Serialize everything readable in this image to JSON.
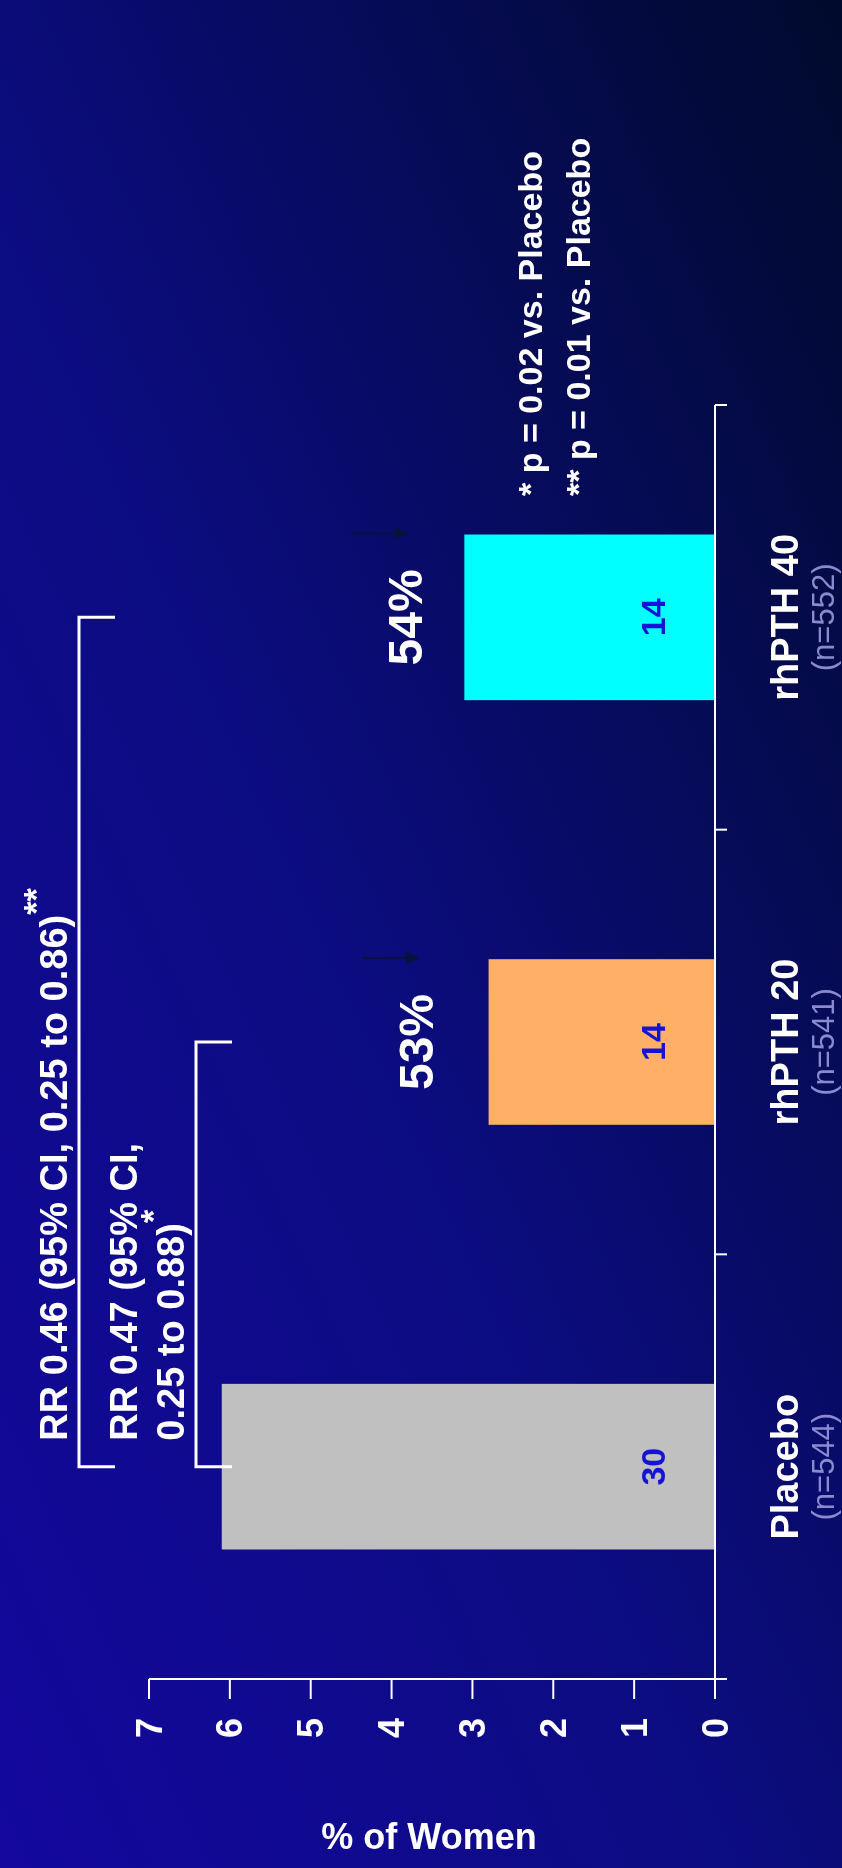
{
  "chart_data": {
    "type": "bar",
    "orientation": "horizontal",
    "xlabel": "% of Women",
    "categories": [
      "rhPTH 40 (n=552)",
      "rhPTH 20 (n=541)",
      "Placebo (n=544)"
    ],
    "values": [
      3.1,
      2.8,
      6.1
    ],
    "colors": [
      "#00ffff",
      "#ffb066",
      "#c0c0c0"
    ],
    "xlim": [
      7,
      0
    ],
    "xticks": [
      7,
      6,
      5,
      4,
      3,
      2,
      1,
      0
    ],
    "annotations": [
      "RR 0.46 (95% CI, 0.25 to 0.86)$^{**}$",
      "RR 0.47 (95% CI, 0.25 to 0.88)$^{*}$",
      "* p = 0.02 vs. Placebo",
      "** p = 0.01 vs. Placebo",
      "30",
      "14",
      "14",
      "53%",
      "54%"
    ]
  }
}
